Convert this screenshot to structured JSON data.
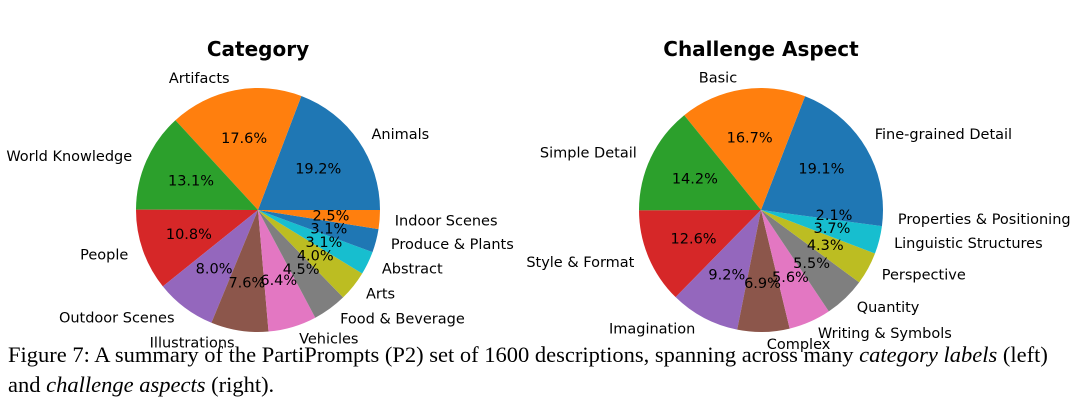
{
  "chart_data": [
    {
      "type": "pie",
      "title": "Category",
      "slices": [
        {
          "label": "Animals",
          "value": 19.2,
          "pct": "19.2%",
          "color": "#1f77b4"
        },
        {
          "label": "Artifacts",
          "value": 17.6,
          "pct": "17.6%",
          "color": "#ff7f0e"
        },
        {
          "label": "World Knowledge",
          "value": 13.1,
          "pct": "13.1%",
          "color": "#2ca02c"
        },
        {
          "label": "People",
          "value": 10.8,
          "pct": "10.8%",
          "color": "#d62728"
        },
        {
          "label": "Outdoor Scenes",
          "value": 8.0,
          "pct": "8.0%",
          "color": "#9467bd"
        },
        {
          "label": "Illustrations",
          "value": 7.6,
          "pct": "7.6%",
          "color": "#8c564b"
        },
        {
          "label": "Vehicles",
          "value": 6.4,
          "pct": "6.4%",
          "color": "#e377c2"
        },
        {
          "label": "Food & Beverage",
          "value": 4.5,
          "pct": "4.5%",
          "color": "#7f7f7f"
        },
        {
          "label": "Arts",
          "value": 4.0,
          "pct": "4.0%",
          "color": "#bcbd22"
        },
        {
          "label": "Abstract",
          "value": 3.1,
          "pct": "3.1%",
          "color": "#17becf"
        },
        {
          "label": "Produce & Plants",
          "value": 3.1,
          "pct": "3.1%",
          "color": "#1f77b4"
        },
        {
          "label": "Indoor Scenes",
          "value": 2.5,
          "pct": "2.5%",
          "color": "#ff7f0e"
        }
      ]
    },
    {
      "type": "pie",
      "title": "Challenge Aspect",
      "slices": [
        {
          "label": "Fine-grained Detail",
          "value": 19.1,
          "pct": "19.1%",
          "color": "#1f77b4"
        },
        {
          "label": "Basic",
          "value": 16.7,
          "pct": "16.7%",
          "color": "#ff7f0e"
        },
        {
          "label": "Simple Detail",
          "value": 14.2,
          "pct": "14.2%",
          "color": "#2ca02c"
        },
        {
          "label": "Style & Format",
          "value": 12.6,
          "pct": "12.6%",
          "color": "#d62728"
        },
        {
          "label": "Imagination",
          "value": 9.2,
          "pct": "9.2%",
          "color": "#9467bd"
        },
        {
          "label": "Complex",
          "value": 6.9,
          "pct": "6.9%",
          "color": "#8c564b"
        },
        {
          "label": "Writing & Symbols",
          "value": 5.6,
          "pct": "5.6%",
          "color": "#e377c2"
        },
        {
          "label": "Quantity",
          "value": 5.5,
          "pct": "5.5%",
          "color": "#7f7f7f"
        },
        {
          "label": "Perspective",
          "value": 4.3,
          "pct": "4.3%",
          "color": "#bcbd22"
        },
        {
          "label": "Linguistic Structures",
          "value": 3.7,
          "pct": "3.7%",
          "color": "#17becf"
        },
        {
          "label": "Properties & Positioning",
          "value": 2.1,
          "pct": "2.1%",
          "color": "#1f77b4"
        }
      ]
    }
  ],
  "caption": {
    "prefix": "Figure 7: A summary of the PartiPrompts (P2) set of 1600 descriptions, spanning across many",
    "em1": "category labels",
    "mid": " (left) and ",
    "em2": "challenge aspects",
    "suffix": " (right)."
  }
}
